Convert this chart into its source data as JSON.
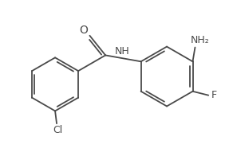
{
  "background_color": "#ffffff",
  "line_color": "#4a4a4a",
  "text_color": "#4a4a4a",
  "figsize": [
    2.87,
    1.96
  ],
  "dpi": 100,
  "line_width": 1.3,
  "label_O": "O",
  "label_NH": "NH",
  "label_NH2": "NH₂",
  "label_F": "F",
  "label_Cl": "Cl"
}
